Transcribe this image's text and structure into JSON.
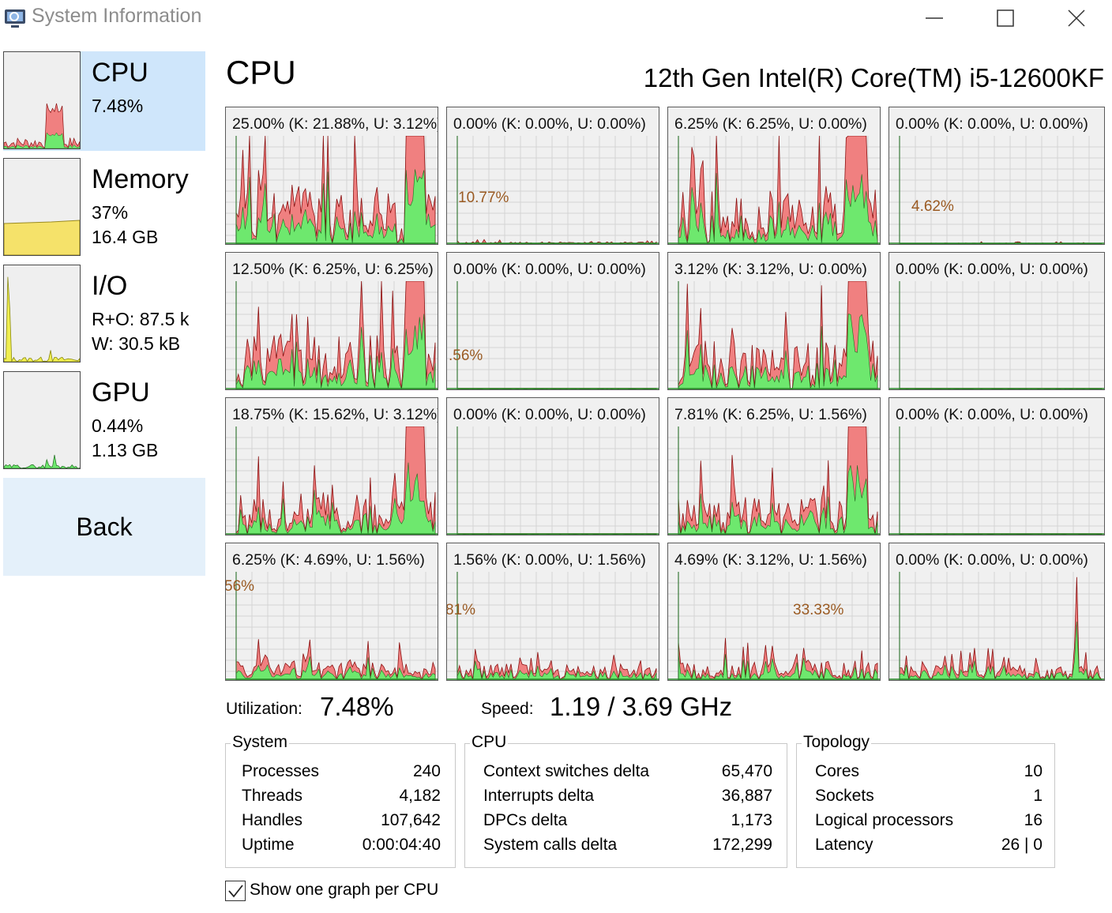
{
  "window": {
    "title": "System Information",
    "controls": {
      "minimize": "minimize",
      "maximize": "maximize",
      "close": "close"
    }
  },
  "sidebar": {
    "items": [
      {
        "title": "CPU",
        "lines": [
          "7.48%"
        ]
      },
      {
        "title": "Memory",
        "lines": [
          "37%",
          "16.4 GB"
        ]
      },
      {
        "title": "I/O",
        "lines": [
          "R+O: 87.5 k",
          "W: 30.5 kB"
        ]
      },
      {
        "title": "GPU",
        "lines": [
          "0.44%",
          "1.13 GB"
        ]
      }
    ],
    "back_label": "Back"
  },
  "header": {
    "title": "CPU",
    "model": "12th Gen Intel(R) Core(TM) i5-12600KF"
  },
  "cores": [
    {
      "label": "25.00% (K: 21.88%, U: 3.12%)",
      "peak": ""
    },
    {
      "label": "0.00% (K: 0.00%, U: 0.00%)",
      "peak": "10.77%"
    },
    {
      "label": "6.25% (K: 6.25%, U: 0.00%)",
      "peak": ""
    },
    {
      "label": "0.00% (K: 0.00%, U: 0.00%)",
      "peak": "4.62%"
    },
    {
      "label": "12.50% (K: 6.25%, U: 6.25%)",
      "peak": ""
    },
    {
      "label": "0.00% (K: 0.00%, U: 0.00%)",
      "peak": ".56%"
    },
    {
      "label": "3.12% (K: 3.12%, U: 0.00%)",
      "peak": ""
    },
    {
      "label": "0.00% (K: 0.00%, U: 0.00%)",
      "peak": ""
    },
    {
      "label": "18.75% (K: 15.62%, U: 3.12%)",
      "peak": ""
    },
    {
      "label": "0.00% (K: 0.00%, U: 0.00%)",
      "peak": ""
    },
    {
      "label": "7.81% (K: 6.25%, U: 1.56%)",
      "peak": ""
    },
    {
      "label": "0.00% (K: 0.00%, U: 0.00%)",
      "peak": ""
    },
    {
      "label": "6.25% (K: 4.69%, U: 1.56%)",
      "peak": "56%"
    },
    {
      "label": "1.56% (K: 0.00%, U: 1.56%)",
      "peak": "81%"
    },
    {
      "label": "4.69% (K: 3.12%, U: 1.56%)",
      "peak": "33.33%"
    },
    {
      "label": "0.00% (K: 0.00%, U: 0.00%)",
      "peak": ""
    }
  ],
  "stats": {
    "utilization_label": "Utilization:",
    "utilization_value": "7.48%",
    "speed_label": "Speed:",
    "speed_value": "1.19 / 3.69 GHz"
  },
  "groups": {
    "system": {
      "title": "System",
      "rows": [
        {
          "label": "Processes",
          "value": "240"
        },
        {
          "label": "Threads",
          "value": "4,182"
        },
        {
          "label": "Handles",
          "value": "107,642"
        },
        {
          "label": "Uptime",
          "value": "0:00:04:40"
        }
      ]
    },
    "cpu": {
      "title": "CPU",
      "rows": [
        {
          "label": "Context switches delta",
          "value": "65,470"
        },
        {
          "label": "Interrupts delta",
          "value": "36,887"
        },
        {
          "label": "DPCs delta",
          "value": "1,173"
        },
        {
          "label": "System calls delta",
          "value": "172,299"
        }
      ]
    },
    "topology": {
      "title": "Topology",
      "rows": [
        {
          "label": "Cores",
          "value": "10"
        },
        {
          "label": "Sockets",
          "value": "1"
        },
        {
          "label": "Logical processors",
          "value": "16"
        },
        {
          "label": "Latency",
          "value": "26 | 0"
        }
      ]
    }
  },
  "options": {
    "one_graph_per_cpu_label": "Show one graph per CPU",
    "one_graph_per_cpu_checked": true
  },
  "colors": {
    "kernel": "#f08080",
    "user": "#6ee86e",
    "memory": "#f5e26a",
    "io": "#f0ee50",
    "active": "#cfe6fb",
    "back": "#e4f0fa",
    "peak": "#9a5a22"
  }
}
